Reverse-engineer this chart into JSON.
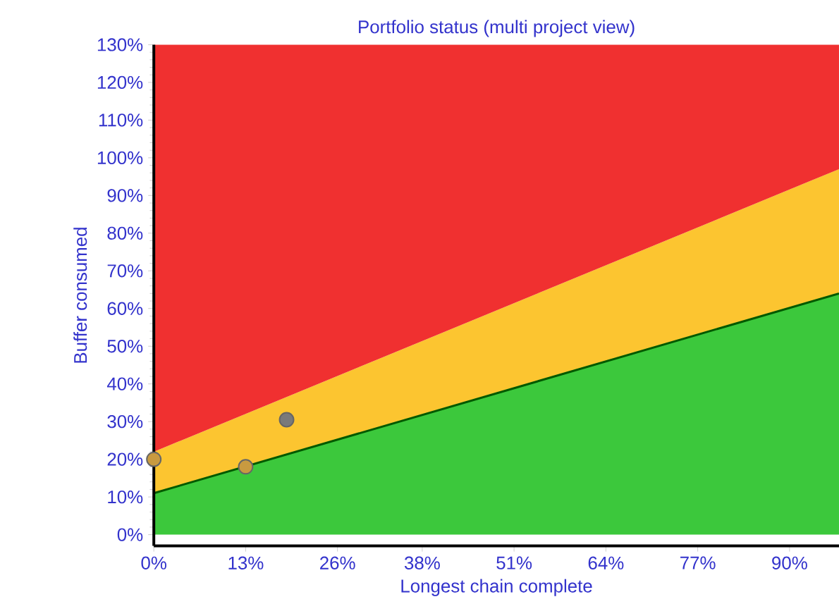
{
  "chart_data": {
    "type": "area",
    "title": "Portfolio status (multi project view)",
    "xlabel": "Longest chain complete",
    "ylabel": "Buffer consumed",
    "x": [
      0,
      97
    ],
    "series": [
      {
        "color": "#3cc83c",
        "values": [
          11,
          64
        ]
      },
      {
        "color": "#fcc530",
        "values": [
          11,
          33
        ]
      },
      {
        "color": "#f03030",
        "values": [
          108,
          33
        ]
      },
      {
        "type": "scatter",
        "marker": "circle",
        "x": [
          0,
          13,
          18.8
        ],
        "values": [
          20,
          18,
          30.5
        ],
        "colors": [
          "#c89a40",
          "#c89a40",
          "#7a7a7a"
        ]
      }
    ],
    "xlim": [
      0,
      97
    ],
    "ylim": [
      -3,
      130
    ],
    "xticks": [
      {
        "value": 0,
        "label": "0%"
      },
      {
        "value": 13,
        "label": "13%"
      },
      {
        "value": 26,
        "label": "26%"
      },
      {
        "value": 38,
        "label": "38%"
      },
      {
        "value": 51,
        "label": "51%"
      },
      {
        "value": 64,
        "label": "64%"
      },
      {
        "value": 77,
        "label": "77%"
      },
      {
        "value": 90,
        "label": "90%"
      }
    ],
    "yticks": [
      {
        "value": 0,
        "label": "0%"
      },
      {
        "value": 10,
        "label": "10%"
      },
      {
        "value": 20,
        "label": "20%"
      },
      {
        "value": 30,
        "label": "30%"
      },
      {
        "value": 40,
        "label": "40%"
      },
      {
        "value": 50,
        "label": "50%"
      },
      {
        "value": 60,
        "label": "60%"
      },
      {
        "value": 70,
        "label": "70%"
      },
      {
        "value": 80,
        "label": "80%"
      },
      {
        "value": 90,
        "label": "90%"
      },
      {
        "value": 100,
        "label": "100%"
      },
      {
        "value": 110,
        "label": "110%"
      },
      {
        "value": 120,
        "label": "120%"
      },
      {
        "value": 130,
        "label": "130%"
      }
    ],
    "grid": false,
    "stacked": true
  }
}
